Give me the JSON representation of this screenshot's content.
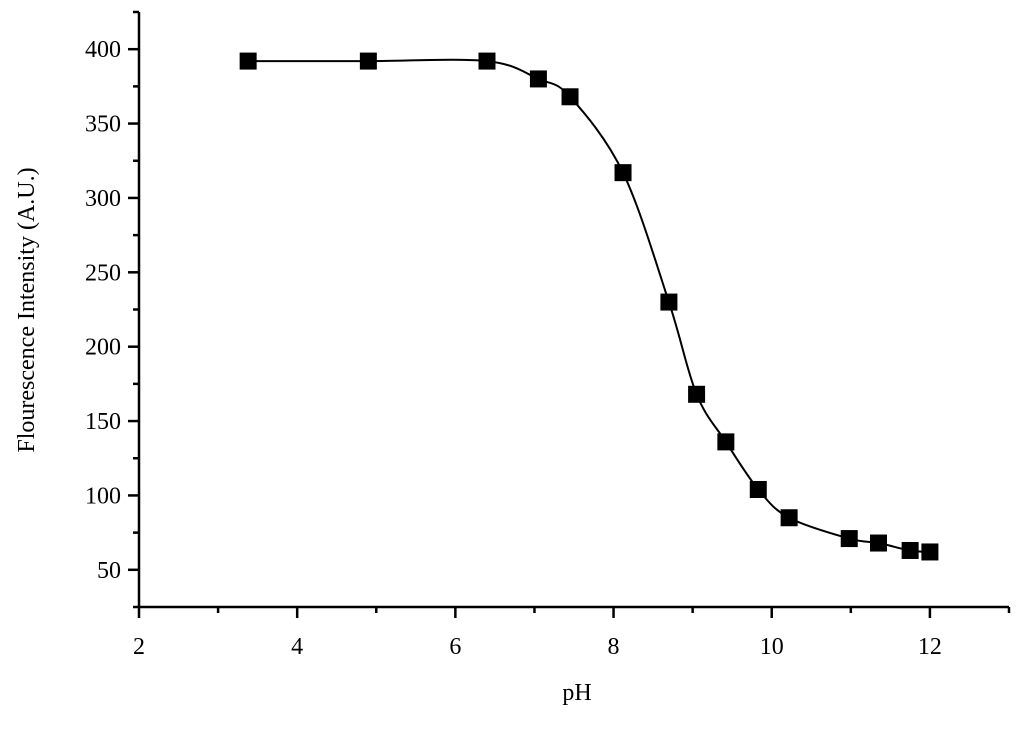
{
  "chart_data": {
    "type": "line",
    "x_label": "pH",
    "y_label": "Flourescence Intensity (A.U.)",
    "xlim": [
      2,
      13
    ],
    "ylim": [
      25,
      425
    ],
    "xticks": [
      2,
      4,
      6,
      8,
      10,
      12
    ],
    "yticks": [
      50,
      100,
      150,
      200,
      250,
      300,
      350,
      400
    ],
    "grid": false,
    "series": [
      {
        "color": "#000000",
        "marker": "square",
        "x": [
          3.38,
          4.9,
          6.4,
          7.05,
          7.45,
          8.12,
          8.7,
          9.05,
          9.42,
          9.83,
          10.22,
          10.98,
          11.35,
          11.75,
          12.0
        ],
        "values": [
          392,
          392,
          392,
          380,
          368,
          317,
          230,
          168,
          136,
          104,
          85,
          71,
          68,
          63,
          62
        ]
      }
    ]
  }
}
